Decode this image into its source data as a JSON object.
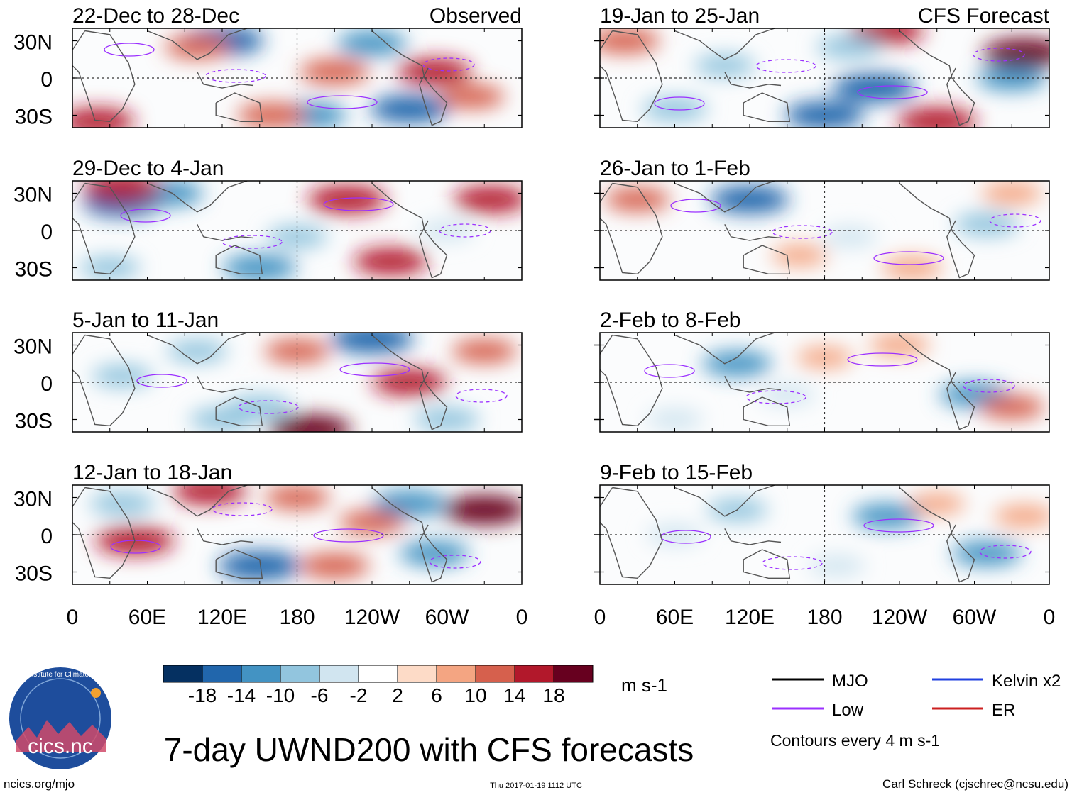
{
  "chart_data": {
    "type": "heatmap",
    "title": "7-day UWND200 with CFS forecasts",
    "variable": "UWND200",
    "units": "m s-1",
    "contour_note": "Contours every 4 m s-1",
    "x_tick_labels": [
      "0",
      "60E",
      "120E",
      "180",
      "120W",
      "60W",
      "0"
    ],
    "y_tick_labels": [
      "30N",
      "0",
      "30S"
    ],
    "colorbar": {
      "tick_labels": [
        "-18",
        "-14",
        "-10",
        "-6",
        "-2",
        "2",
        "6",
        "10",
        "14",
        "18"
      ],
      "colors": [
        "#053061",
        "#2166ac",
        "#4393c3",
        "#92c5de",
        "#d1e5f0",
        "#ffffff",
        "#fddbc7",
        "#f4a582",
        "#d6604d",
        "#b2182b",
        "#67001f"
      ]
    },
    "legend": [
      {
        "name": "MJO",
        "color": "#000000"
      },
      {
        "name": "Kelvin x2",
        "color": "#2040e0"
      },
      {
        "name": "Low",
        "color": "#9b30ff"
      },
      {
        "name": "ER",
        "color": "#cc2020"
      }
    ],
    "panels": [
      {
        "id": "p1",
        "period": "22-Dec to 28-Dec",
        "source": "Observed",
        "column": "left",
        "row": 0,
        "features": [
          {
            "lon": 120,
            "lat": 30,
            "value": -18
          },
          {
            "lon": 190,
            "lat": -30,
            "value": -14
          },
          {
            "lon": 100,
            "lat": 25,
            "value": 10
          },
          {
            "lon": 290,
            "lat": 5,
            "value": 14
          },
          {
            "lon": 210,
            "lat": 5,
            "value": 12
          },
          {
            "lon": 270,
            "lat": -25,
            "value": -16
          },
          {
            "lon": 320,
            "lat": -15,
            "value": 10
          },
          {
            "lon": 20,
            "lat": -35,
            "value": 14
          },
          {
            "lon": 160,
            "lat": -30,
            "value": 12
          },
          {
            "lon": 240,
            "lat": 28,
            "value": -12
          }
        ]
      },
      {
        "id": "p2",
        "period": "29-Dec to 4-Jan",
        "source": "",
        "column": "left",
        "row": 1,
        "features": [
          {
            "lon": 40,
            "lat": 22,
            "value": -16
          },
          {
            "lon": 75,
            "lat": 30,
            "value": -14
          },
          {
            "lon": 40,
            "lat": 35,
            "value": 16
          },
          {
            "lon": 220,
            "lat": 25,
            "value": 16
          },
          {
            "lon": 335,
            "lat": 25,
            "value": 14
          },
          {
            "lon": 255,
            "lat": -25,
            "value": 14
          },
          {
            "lon": 150,
            "lat": -30,
            "value": -14
          },
          {
            "lon": 180,
            "lat": -5,
            "value": -8
          },
          {
            "lon": 30,
            "lat": -30,
            "value": -8
          },
          {
            "lon": 300,
            "lat": 0,
            "value": -6
          }
        ]
      },
      {
        "id": "p3",
        "period": "5-Jan to 11-Jan",
        "source": "",
        "column": "left",
        "row": 2,
        "features": [
          {
            "lon": 240,
            "lat": 35,
            "value": -18
          },
          {
            "lon": 190,
            "lat": -38,
            "value": 18
          },
          {
            "lon": 180,
            "lat": 25,
            "value": 10
          },
          {
            "lon": 270,
            "lat": 0,
            "value": 14
          },
          {
            "lon": 150,
            "lat": -20,
            "value": -10
          },
          {
            "lon": 40,
            "lat": 5,
            "value": -8
          },
          {
            "lon": 120,
            "lat": -30,
            "value": -10
          },
          {
            "lon": 330,
            "lat": 25,
            "value": 10
          },
          {
            "lon": 300,
            "lat": -30,
            "value": -10
          },
          {
            "lon": 100,
            "lat": 25,
            "value": -8
          }
        ]
      },
      {
        "id": "p4",
        "period": "12-Jan to 18-Jan",
        "source": "",
        "column": "left",
        "row": 3,
        "features": [
          {
            "lon": 150,
            "lat": -25,
            "value": -18
          },
          {
            "lon": 50,
            "lat": -5,
            "value": 16
          },
          {
            "lon": 330,
            "lat": 20,
            "value": 18
          },
          {
            "lon": 110,
            "lat": 35,
            "value": 14
          },
          {
            "lon": 270,
            "lat": 25,
            "value": -14
          },
          {
            "lon": 290,
            "lat": -15,
            "value": -12
          },
          {
            "lon": 210,
            "lat": -25,
            "value": 12
          },
          {
            "lon": 40,
            "lat": 25,
            "value": -10
          },
          {
            "lon": 240,
            "lat": 10,
            "value": 10
          },
          {
            "lon": 180,
            "lat": 30,
            "value": 10
          }
        ]
      },
      {
        "id": "p5",
        "period": "19-Jan to 25-Jan",
        "source": "CFS Forecast",
        "column": "right",
        "row": 0,
        "features": [
          {
            "lon": 220,
            "lat": -8,
            "value": -18
          },
          {
            "lon": 180,
            "lat": -30,
            "value": -16
          },
          {
            "lon": 340,
            "lat": 20,
            "value": 18
          },
          {
            "lon": 230,
            "lat": 38,
            "value": 14
          },
          {
            "lon": 270,
            "lat": -35,
            "value": 16
          },
          {
            "lon": 20,
            "lat": 30,
            "value": 12
          },
          {
            "lon": 200,
            "lat": 25,
            "value": -10
          },
          {
            "lon": 330,
            "lat": 0,
            "value": -12
          },
          {
            "lon": 60,
            "lat": -25,
            "value": -10
          },
          {
            "lon": 100,
            "lat": 10,
            "value": -8
          }
        ]
      },
      {
        "id": "p6",
        "period": "26-Jan to 1-Feb",
        "source": "",
        "column": "right",
        "row": 1,
        "features": [
          {
            "lon": 120,
            "lat": 25,
            "value": -16
          },
          {
            "lon": 30,
            "lat": 25,
            "value": 10
          },
          {
            "lon": 310,
            "lat": 5,
            "value": -10
          },
          {
            "lon": 330,
            "lat": 30,
            "value": 8
          },
          {
            "lon": 200,
            "lat": -5,
            "value": -6
          },
          {
            "lon": 250,
            "lat": -30,
            "value": 8
          },
          {
            "lon": 160,
            "lat": -20,
            "value": 6
          }
        ]
      },
      {
        "id": "p7",
        "period": "2-Feb to 8-Feb",
        "source": "",
        "column": "right",
        "row": 2,
        "features": [
          {
            "lon": 110,
            "lat": 15,
            "value": -12
          },
          {
            "lon": 300,
            "lat": -10,
            "value": -12
          },
          {
            "lon": 330,
            "lat": -20,
            "value": 10
          },
          {
            "lon": 180,
            "lat": 20,
            "value": 6
          },
          {
            "lon": 240,
            "lat": 30,
            "value": 8
          },
          {
            "lon": 60,
            "lat": -30,
            "value": -6
          },
          {
            "lon": 150,
            "lat": -10,
            "value": -6
          }
        ]
      },
      {
        "id": "p8",
        "period": "9-Feb to 15-Feb",
        "source": "",
        "column": "right",
        "row": 3,
        "features": [
          {
            "lon": 230,
            "lat": 15,
            "value": -12
          },
          {
            "lon": 310,
            "lat": -15,
            "value": -12
          },
          {
            "lon": 110,
            "lat": 20,
            "value": -8
          },
          {
            "lon": 270,
            "lat": 25,
            "value": 6
          },
          {
            "lon": 340,
            "lat": 15,
            "value": 8
          },
          {
            "lon": 190,
            "lat": -25,
            "value": -6
          },
          {
            "lon": 60,
            "lat": 0,
            "value": -6
          }
        ]
      }
    ]
  },
  "footer": {
    "logo_text": "cics.nc",
    "logo_ring_text": "Cooperative Institute for Climate and Satellites",
    "url": "ncics.org/mjo",
    "timestamp": "Thu 2017-01-19 1112 UTC",
    "author": "Carl Schreck (cjschrec@ncsu.edu)"
  }
}
